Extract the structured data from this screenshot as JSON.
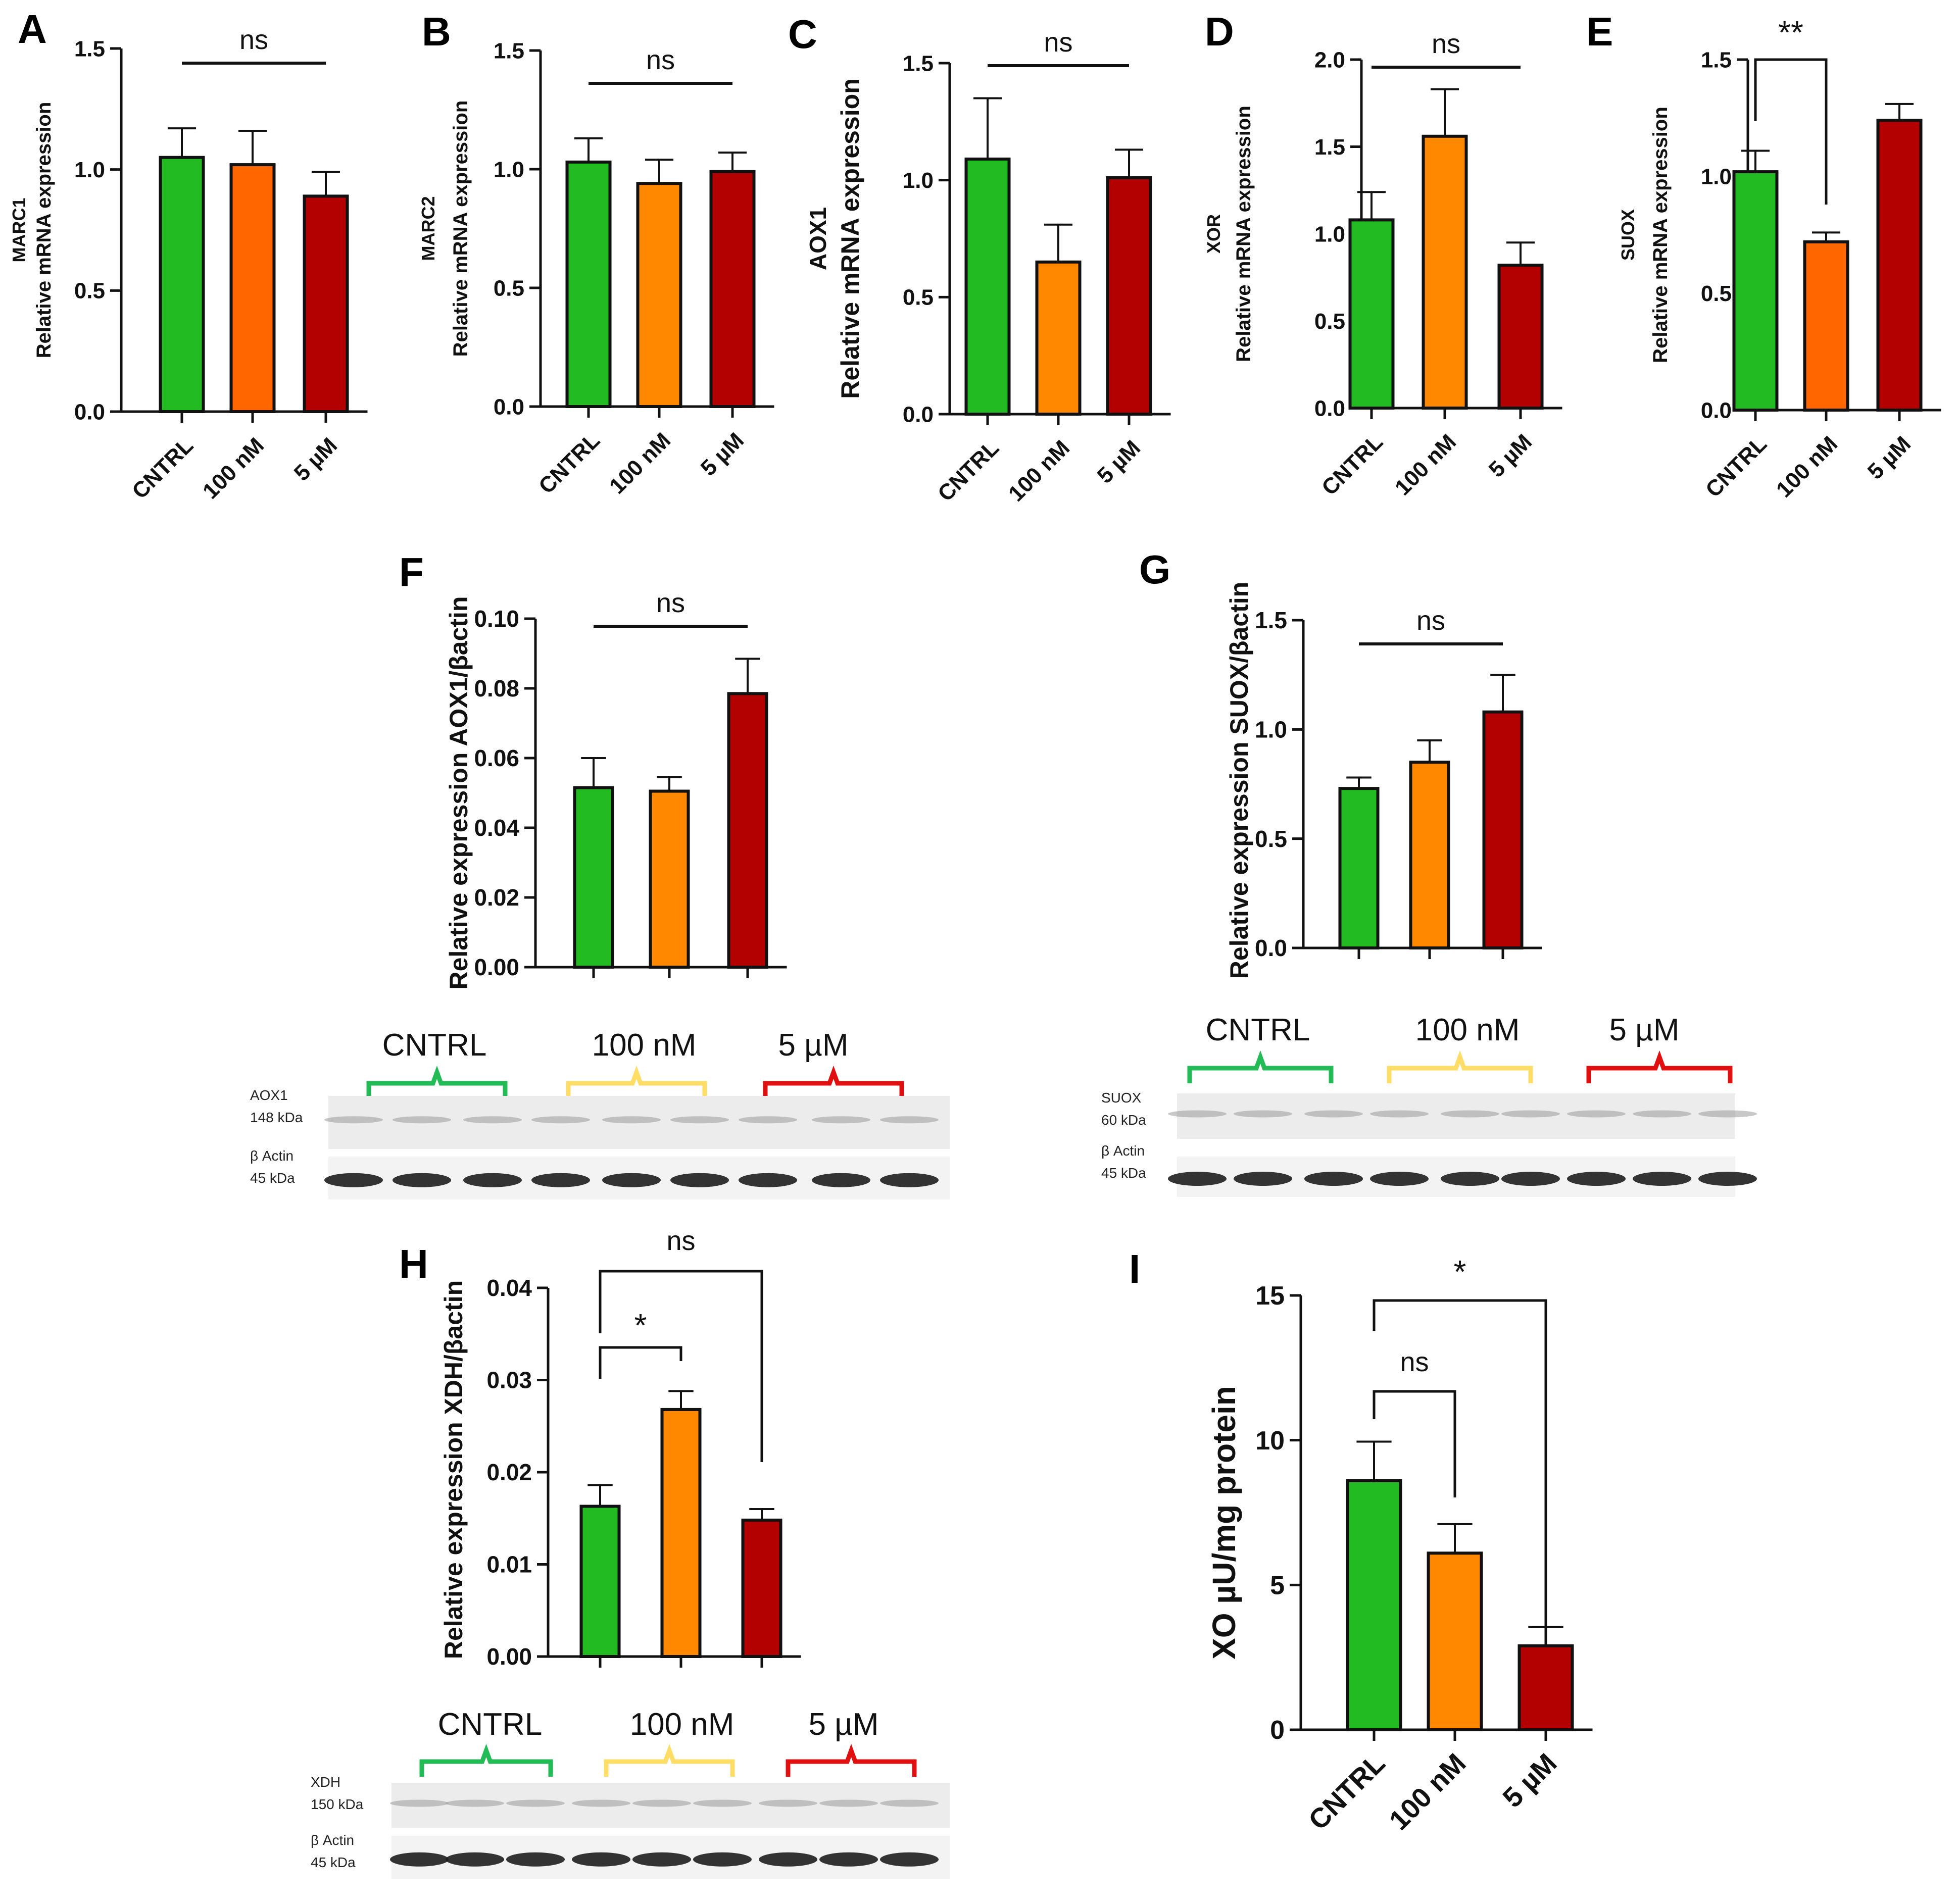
{
  "panel_labels": [
    "A",
    "B",
    "C",
    "D",
    "E",
    "F",
    "G",
    "H",
    "I"
  ],
  "chart_data": [
    {
      "panel": "A",
      "type": "bar",
      "categories": [
        "CNTRL",
        "100 nM",
        "5 µM"
      ],
      "values": [
        1.05,
        1.02,
        0.89
      ],
      "errors": [
        0.12,
        0.14,
        0.1
      ],
      "colors": [
        "#22bb22",
        "#ff6600",
        "#b30000"
      ],
      "ylabel": [
        "MARC1",
        "Relative mRNA expression"
      ],
      "ylim": [
        0,
        1.5
      ],
      "yticks": [
        "0.0",
        "0.5",
        "1.0",
        "1.5"
      ],
      "annotations": [
        {
          "text": "ns",
          "type": "line",
          "from": 0,
          "to": 2
        }
      ]
    },
    {
      "panel": "B",
      "type": "bar",
      "categories": [
        "CNTRL",
        "100 nM",
        "5 µM"
      ],
      "values": [
        1.03,
        0.94,
        0.99
      ],
      "errors": [
        0.1,
        0.1,
        0.08
      ],
      "colors": [
        "#22bb22",
        "#ff8800",
        "#b30000"
      ],
      "ylabel": [
        "MARC2",
        "Relative mRNA expression"
      ],
      "ylim": [
        0,
        1.5
      ],
      "yticks": [
        "0.0",
        "0.5",
        "1.0",
        "1.5"
      ],
      "annotations": [
        {
          "text": "ns",
          "type": "line",
          "from": 0,
          "to": 2
        }
      ]
    },
    {
      "panel": "C",
      "type": "bar",
      "categories": [
        "CNTRL",
        "100 nM",
        "5 µM"
      ],
      "values": [
        1.09,
        0.65,
        1.01
      ],
      "errors": [
        0.26,
        0.16,
        0.12
      ],
      "colors": [
        "#22bb22",
        "#ff8800",
        "#b30000"
      ],
      "ylabel": [
        "AOX1",
        "Relative mRNA expression"
      ],
      "ylim": [
        0,
        1.5
      ],
      "yticks": [
        "0.0",
        "0.5",
        "1.0",
        "1.5"
      ],
      "annotations": [
        {
          "text": "ns",
          "type": "line",
          "from": 0,
          "to": 2
        }
      ]
    },
    {
      "panel": "D",
      "type": "bar",
      "categories": [
        "CNTRL",
        "100 nM",
        "5 µM"
      ],
      "values": [
        1.08,
        1.56,
        0.82
      ],
      "errors": [
        0.16,
        0.27,
        0.13
      ],
      "colors": [
        "#22bb22",
        "#ff8800",
        "#b30000"
      ],
      "ylabel": [
        "XOR",
        "Relative mRNA expression"
      ],
      "ylim": [
        0,
        2.0
      ],
      "yticks": [
        "0.0",
        "0.5",
        "1.0",
        "1.5",
        "2.0"
      ],
      "annotations": [
        {
          "text": "ns",
          "type": "line",
          "from": 0,
          "to": 2
        }
      ]
    },
    {
      "panel": "E",
      "type": "bar",
      "categories": [
        "CNTRL",
        "100 nM",
        "5 µM"
      ],
      "values": [
        1.02,
        0.72,
        1.24
      ],
      "errors": [
        0.09,
        0.04,
        0.07
      ],
      "colors": [
        "#22bb22",
        "#ff6600",
        "#b30000"
      ],
      "ylabel": [
        "SUOX",
        "Relative mRNA expression"
      ],
      "ylim": [
        0,
        1.5
      ],
      "yticks": [
        "0.0",
        "0.5",
        "1.0",
        "1.5"
      ],
      "annotations": [
        {
          "text": "**",
          "type": "bracket",
          "from": 0,
          "to": 1
        }
      ]
    },
    {
      "panel": "F",
      "type": "bar",
      "categories": [
        "CNTRL",
        "100 nM",
        "5 µM"
      ],
      "values": [
        0.0515,
        0.0505,
        0.0785
      ],
      "errors": [
        0.0085,
        0.004,
        0.01
      ],
      "colors": [
        "#22bb22",
        "#ff8800",
        "#b30000"
      ],
      "ylabel": [
        "Relative expression AOX1/βactin"
      ],
      "ylim": [
        0,
        0.1
      ],
      "yticks": [
        "0.00",
        "0.02",
        "0.04",
        "0.06",
        "0.08",
        "0.10"
      ],
      "annotations": [
        {
          "text": "ns",
          "type": "line",
          "from": 0,
          "to": 2
        }
      ]
    },
    {
      "panel": "G",
      "type": "bar",
      "categories": [
        "CNTRL",
        "100 nM",
        "5 µM"
      ],
      "values": [
        0.73,
        0.85,
        1.08
      ],
      "errors": [
        0.05,
        0.1,
        0.17
      ],
      "colors": [
        "#22bb22",
        "#ff8800",
        "#b30000"
      ],
      "ylabel": [
        "Relative expression SUOX/βactin"
      ],
      "ylim": [
        0,
        1.5
      ],
      "yticks": [
        "0.0",
        "0.5",
        "1.0",
        "1.5"
      ],
      "annotations": [
        {
          "text": "ns",
          "type": "line",
          "from": 0,
          "to": 2
        }
      ]
    },
    {
      "panel": "H",
      "type": "bar",
      "categories": [
        "CNTRL",
        "100 nM",
        "5 µM"
      ],
      "values": [
        0.0163,
        0.0268,
        0.0148
      ],
      "errors": [
        0.0023,
        0.002,
        0.0012
      ],
      "colors": [
        "#22bb22",
        "#ff8800",
        "#b30000"
      ],
      "ylabel": [
        "Relative expression XDH/βactin"
      ],
      "ylim": [
        0,
        0.04
      ],
      "yticks": [
        "0.00",
        "0.01",
        "0.02",
        "0.03",
        "0.04"
      ],
      "annotations": [
        {
          "text": "*",
          "type": "bracket",
          "from": 0,
          "to": 1
        },
        {
          "text": "ns",
          "type": "bracket",
          "from": 0,
          "to": 2
        }
      ]
    },
    {
      "panel": "I",
      "type": "bar",
      "categories": [
        "CNTRL",
        "100 nM",
        "5 µM"
      ],
      "values": [
        8.6,
        6.1,
        2.9
      ],
      "errors": [
        1.35,
        1.0,
        0.65
      ],
      "colors": [
        "#22bb22",
        "#ff8800",
        "#b30000"
      ],
      "ylabel": [
        "XO µU/mg protein"
      ],
      "ylim": [
        0,
        15
      ],
      "yticks": [
        "0",
        "5",
        "10",
        "15"
      ],
      "annotations": [
        {
          "text": "ns",
          "type": "bracket",
          "from": 0,
          "to": 1
        },
        {
          "text": "*",
          "type": "bracket",
          "from": 0,
          "to": 2
        }
      ]
    }
  ],
  "blots": [
    {
      "panel": "F",
      "groups": [
        "CNTRL",
        "100 nM",
        "5 µM"
      ],
      "group_colors": [
        "#22bb55",
        "#ffdd66",
        "#e01010"
      ],
      "rows": [
        [
          "AOX1",
          "148 kDa"
        ],
        [
          "β Actin",
          "45 kDa"
        ]
      ]
    },
    {
      "panel": "G",
      "groups": [
        "CNTRL",
        "100 nM",
        "5 µM"
      ],
      "group_colors": [
        "#22bb55",
        "#ffdd66",
        "#e01010"
      ],
      "rows": [
        [
          "SUOX",
          "60 kDa"
        ],
        [
          "β Actin",
          "45 kDa"
        ]
      ]
    },
    {
      "panel": "H",
      "groups": [
        "CNTRL",
        "100 nM",
        "5 µM"
      ],
      "group_colors": [
        "#22bb55",
        "#ffdd66",
        "#e01010"
      ],
      "rows": [
        [
          "XDH",
          "150 kDa"
        ],
        [
          "β Actin",
          "45 kDa"
        ]
      ]
    }
  ]
}
